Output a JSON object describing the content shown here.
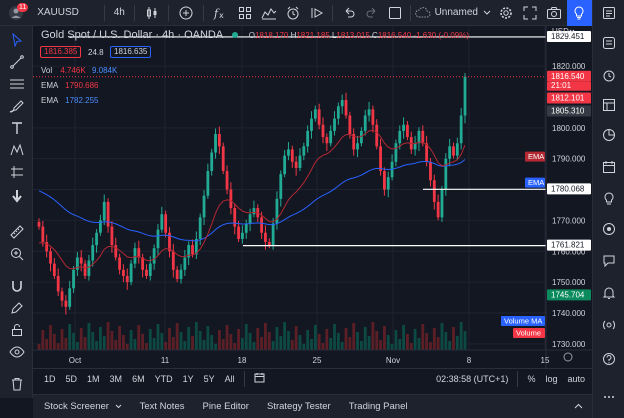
{
  "toolbar": {
    "notification_count": "11",
    "symbol": "XAUUSD",
    "interval": "4h",
    "layout_name": "Unnamed"
  },
  "legend": {
    "title": "Gold Spot / U.S. Dollar",
    "interval": "4h",
    "source": "OANDA",
    "o_label": "O",
    "o_value": "1818.170",
    "h_label": "H",
    "h_value": "1821.185",
    "l_label": "L",
    "l_value": "1813.015",
    "c_label": "C",
    "c_value": "1816.540",
    "change": "-1.630 (-0.09%)",
    "sell_price": "1816.385",
    "spread": "24.8",
    "buy_price": "1816.635",
    "vol_label": "Vol",
    "vol_value1": "4.746K",
    "vol_value2": "9.084K",
    "ema1_label": "EMA",
    "ema1_value": "1790.686",
    "ema2_label": "EMA",
    "ema2_value": "1782.255"
  },
  "price_scale": {
    "currency": "USD",
    "ticks": [
      "1820.000",
      "1800.000",
      "1790.000",
      "1780.000",
      "1770.000",
      "1760.000",
      "1750.000",
      "1740.000",
      "1730.000"
    ],
    "hline_labels": [
      "1829.451",
      "1780.068",
      "1761.821"
    ],
    "last_price": "1816.540",
    "countdown": "21:01",
    "pre_price": "1812.101",
    "high_tag": "1805.310",
    "ema_tag1": "EMA",
    "ema_tag2": "EMA",
    "ema_price": "1745.704",
    "volume_ma_tag": "Volume MA",
    "volume_tag": "Volume",
    "colors": {
      "last": "#f23645",
      "ema_red": "#b22833",
      "ema_blue": "#2962ff",
      "green": "#22ab94",
      "teal_vol": "#089981"
    }
  },
  "time_axis": {
    "labels": [
      "Oct",
      "11",
      "18",
      "25",
      "Nov",
      "8",
      "15"
    ]
  },
  "range_bar": {
    "ranges": [
      "1D",
      "5D",
      "1M",
      "3M",
      "6M",
      "YTD",
      "1Y",
      "5Y",
      "All"
    ],
    "clock": "02:38:58 (UTC+1)",
    "percent": "%",
    "log": "log",
    "auto": "auto"
  },
  "panels": [
    "Stock Screener",
    "Text Notes",
    "Pine Editor",
    "Strategy Tester",
    "Trading Panel"
  ],
  "chart_data": {
    "type": "candlestick",
    "symbol": "XAUUSD",
    "interval": "4h",
    "ylim": [
      1728,
      1833
    ],
    "close_series": [
      1768,
      1763,
      1760,
      1756,
      1752,
      1747,
      1744,
      1742,
      1748,
      1754,
      1758,
      1756,
      1752,
      1757,
      1762,
      1766,
      1770,
      1776,
      1768,
      1762,
      1758,
      1754,
      1752,
      1750,
      1756,
      1761,
      1758,
      1754,
      1752,
      1756,
      1761,
      1767,
      1772,
      1766,
      1760,
      1754,
      1751,
      1754,
      1758,
      1762,
      1759,
      1764,
      1771,
      1778,
      1786,
      1792,
      1798,
      1794,
      1786,
      1780,
      1774,
      1768,
      1764,
      1766,
      1769,
      1772,
      1774,
      1771,
      1766,
      1763,
      1762,
      1769,
      1777,
      1785,
      1791,
      1793,
      1789,
      1787,
      1791,
      1794,
      1799,
      1803,
      1806,
      1801,
      1797,
      1795,
      1799,
      1803,
      1807,
      1809,
      1804,
      1798,
      1793,
      1795,
      1799,
      1804,
      1806,
      1801,
      1794,
      1786,
      1780,
      1784,
      1789,
      1795,
      1799,
      1801,
      1797,
      1793,
      1795,
      1799,
      1795,
      1789,
      1783,
      1776,
      1771,
      1780,
      1790,
      1794,
      1791,
      1795,
      1804,
      1816.54
    ],
    "ema_fast_last": 1790.686,
    "ema_slow_last": 1782.255,
    "horizontal_lines": [
      1829.451,
      1780.068,
      1761.821
    ]
  }
}
